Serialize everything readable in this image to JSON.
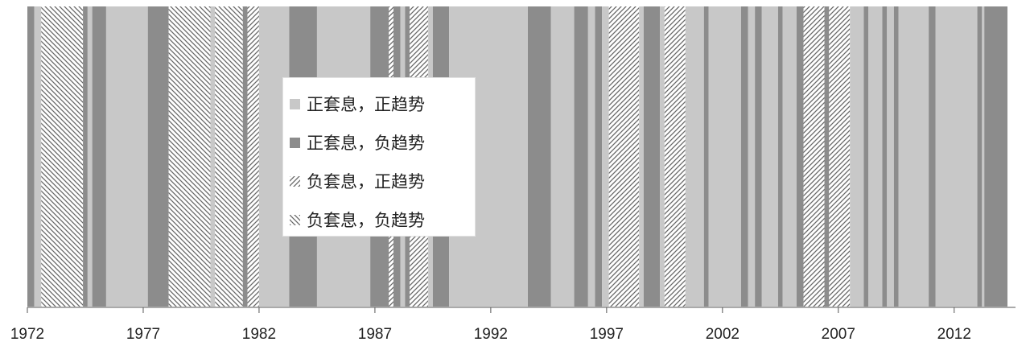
{
  "chart_data": {
    "type": "timeline-regime-bands",
    "xlim": [
      1972,
      2014.3
    ],
    "x_ticks": [
      "1972",
      "1977",
      "1982",
      "1987",
      "1992",
      "1997",
      "2002",
      "2007",
      "2012"
    ],
    "colors": {
      "pos_carry_pos_trend": "#c8c8c8",
      "pos_carry_neg_trend": "#8c8c8c"
    },
    "legend": [
      {
        "key": "pos_carry_pos_trend",
        "label": "正套息，正趋势",
        "swatch": "solid-light"
      },
      {
        "key": "pos_carry_neg_trend",
        "label": "正套息，负趋势",
        "swatch": "solid-dark"
      },
      {
        "key": "neg_carry_pos_trend",
        "label": "负套息，正趋势",
        "swatch": "hatch-forward"
      },
      {
        "key": "neg_carry_neg_trend",
        "label": "负套息，负趋势",
        "swatch": "hatch-back"
      }
    ],
    "segments": [
      {
        "start": 1972.0,
        "end": 1972.3,
        "regime": "pos_carry_neg_trend"
      },
      {
        "start": 1972.3,
        "end": 1972.6,
        "regime": "pos_carry_pos_trend"
      },
      {
        "start": 1972.6,
        "end": 1974.4,
        "regime": "neg_carry_neg_trend"
      },
      {
        "start": 1974.4,
        "end": 1974.6,
        "regime": "pos_carry_neg_trend"
      },
      {
        "start": 1974.6,
        "end": 1974.8,
        "regime": "pos_carry_pos_trend"
      },
      {
        "start": 1974.8,
        "end": 1975.4,
        "regime": "pos_carry_neg_trend"
      },
      {
        "start": 1975.4,
        "end": 1977.2,
        "regime": "pos_carry_pos_trend"
      },
      {
        "start": 1977.2,
        "end": 1978.1,
        "regime": "pos_carry_neg_trend"
      },
      {
        "start": 1978.1,
        "end": 1979.9,
        "regime": "neg_carry_neg_trend"
      },
      {
        "start": 1979.9,
        "end": 1980.1,
        "regime": "pos_carry_pos_trend"
      },
      {
        "start": 1980.1,
        "end": 1981.3,
        "regime": "neg_carry_neg_trend"
      },
      {
        "start": 1981.3,
        "end": 1981.5,
        "regime": "pos_carry_neg_trend"
      },
      {
        "start": 1981.5,
        "end": 1982.0,
        "regime": "neg_carry_pos_trend"
      },
      {
        "start": 1982.0,
        "end": 1983.3,
        "regime": "pos_carry_pos_trend"
      },
      {
        "start": 1983.3,
        "end": 1984.5,
        "regime": "pos_carry_neg_trend"
      },
      {
        "start": 1984.5,
        "end": 1986.8,
        "regime": "pos_carry_pos_trend"
      },
      {
        "start": 1986.8,
        "end": 1987.6,
        "regime": "pos_carry_neg_trend"
      },
      {
        "start": 1987.6,
        "end": 1987.8,
        "regime": "neg_carry_pos_trend"
      },
      {
        "start": 1987.8,
        "end": 1988.1,
        "regime": "pos_carry_neg_trend"
      },
      {
        "start": 1988.1,
        "end": 1988.3,
        "regime": "pos_carry_pos_trend"
      },
      {
        "start": 1988.3,
        "end": 1988.5,
        "regime": "pos_carry_neg_trend"
      },
      {
        "start": 1988.5,
        "end": 1989.3,
        "regime": "neg_carry_pos_trend"
      },
      {
        "start": 1989.3,
        "end": 1989.5,
        "regime": "pos_carry_pos_trend"
      },
      {
        "start": 1989.5,
        "end": 1990.2,
        "regime": "pos_carry_neg_trend"
      },
      {
        "start": 1990.2,
        "end": 1993.6,
        "regime": "pos_carry_pos_trend"
      },
      {
        "start": 1993.6,
        "end": 1994.6,
        "regime": "pos_carry_neg_trend"
      },
      {
        "start": 1994.6,
        "end": 1995.6,
        "regime": "pos_carry_pos_trend"
      },
      {
        "start": 1995.6,
        "end": 1996.2,
        "regime": "pos_carry_neg_trend"
      },
      {
        "start": 1996.2,
        "end": 1996.5,
        "regime": "pos_carry_pos_trend"
      },
      {
        "start": 1996.5,
        "end": 1996.8,
        "regime": "pos_carry_neg_trend"
      },
      {
        "start": 1996.8,
        "end": 1997.1,
        "regime": "pos_carry_pos_trend"
      },
      {
        "start": 1997.1,
        "end": 1998.4,
        "regime": "neg_carry_pos_trend"
      },
      {
        "start": 1998.4,
        "end": 1998.6,
        "regime": "pos_carry_pos_trend"
      },
      {
        "start": 1998.6,
        "end": 1999.3,
        "regime": "pos_carry_neg_trend"
      },
      {
        "start": 1999.3,
        "end": 1999.5,
        "regime": "pos_carry_pos_trend"
      },
      {
        "start": 1999.5,
        "end": 2000.4,
        "regime": "neg_carry_pos_trend"
      },
      {
        "start": 2000.4,
        "end": 2001.2,
        "regime": "pos_carry_pos_trend"
      },
      {
        "start": 2001.2,
        "end": 2001.4,
        "regime": "pos_carry_neg_trend"
      },
      {
        "start": 2001.4,
        "end": 2002.8,
        "regime": "pos_carry_pos_trend"
      },
      {
        "start": 2002.8,
        "end": 2003.1,
        "regime": "pos_carry_neg_trend"
      },
      {
        "start": 2003.1,
        "end": 2003.4,
        "regime": "pos_carry_pos_trend"
      },
      {
        "start": 2003.4,
        "end": 2003.7,
        "regime": "pos_carry_neg_trend"
      },
      {
        "start": 2003.7,
        "end": 2004.4,
        "regime": "pos_carry_pos_trend"
      },
      {
        "start": 2004.4,
        "end": 2004.6,
        "regime": "pos_carry_neg_trend"
      },
      {
        "start": 2004.6,
        "end": 2005.2,
        "regime": "pos_carry_pos_trend"
      },
      {
        "start": 2005.2,
        "end": 2005.5,
        "regime": "pos_carry_neg_trend"
      },
      {
        "start": 2005.5,
        "end": 2006.4,
        "regime": "neg_carry_pos_trend"
      },
      {
        "start": 2006.4,
        "end": 2006.6,
        "regime": "pos_carry_neg_trend"
      },
      {
        "start": 2006.6,
        "end": 2007.5,
        "regime": "neg_carry_pos_trend"
      },
      {
        "start": 2007.5,
        "end": 2008.1,
        "regime": "pos_carry_pos_trend"
      },
      {
        "start": 2008.1,
        "end": 2008.3,
        "regime": "pos_carry_neg_trend"
      },
      {
        "start": 2008.3,
        "end": 2008.9,
        "regime": "pos_carry_pos_trend"
      },
      {
        "start": 2008.9,
        "end": 2009.1,
        "regime": "pos_carry_neg_trend"
      },
      {
        "start": 2009.1,
        "end": 2009.4,
        "regime": "pos_carry_pos_trend"
      },
      {
        "start": 2009.4,
        "end": 2009.6,
        "regime": "pos_carry_neg_trend"
      },
      {
        "start": 2009.6,
        "end": 2010.9,
        "regime": "pos_carry_pos_trend"
      },
      {
        "start": 2010.9,
        "end": 2011.2,
        "regime": "pos_carry_neg_trend"
      },
      {
        "start": 2011.2,
        "end": 2013.0,
        "regime": "pos_carry_pos_trend"
      },
      {
        "start": 2013.0,
        "end": 2013.2,
        "regime": "pos_carry_neg_trend"
      },
      {
        "start": 2013.2,
        "end": 2013.3,
        "regime": "pos_carry_pos_trend"
      },
      {
        "start": 2013.3,
        "end": 2014.3,
        "regime": "pos_carry_neg_trend"
      }
    ]
  }
}
